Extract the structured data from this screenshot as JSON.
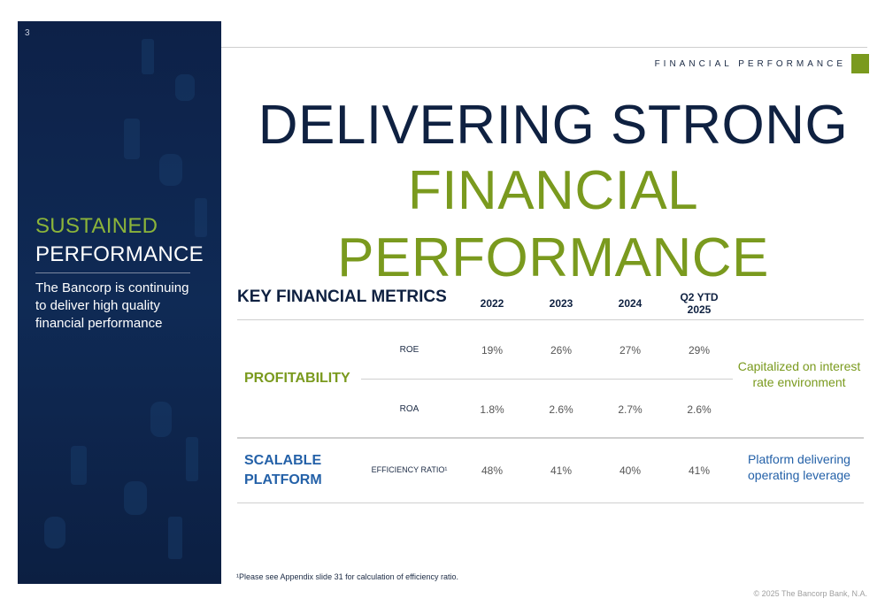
{
  "slide_number": "3",
  "sidebar": {
    "title_line1": "SUSTAINED",
    "title_line2": "PERFORMANCE",
    "text": "The Bancorp is continuing to deliver high quality financial performance"
  },
  "section_label": "FINANCIAL PERFORMANCE",
  "headline": {
    "line1": "DELIVERING STRONG",
    "line2": "FINANCIAL PERFORMANCE"
  },
  "table": {
    "title": "KEY FINANCIAL METRICS",
    "columns": [
      "2022",
      "2023",
      "2024",
      "Q2 YTD\n2025"
    ],
    "groups": [
      {
        "category": "PROFITABILITY",
        "note": "Capitalized on interest rate environment",
        "rows": [
          {
            "metric": "ROE",
            "values": [
              "19%",
              "26%",
              "27%",
              "29%"
            ]
          },
          {
            "metric": "ROA",
            "values": [
              "1.8%",
              "2.6%",
              "2.7%",
              "2.6%"
            ]
          }
        ]
      },
      {
        "category": "SCALABLE PLATFORM",
        "note": "Platform delivering operating leverage",
        "rows": [
          {
            "metric": "EFFICIENCY RATIO¹",
            "values": [
              "48%",
              "41%",
              "40%",
              "41%"
            ]
          }
        ]
      }
    ]
  },
  "footnote": "¹Please see Appendix slide 31 for calculation of efficiency ratio.",
  "copyright": "© 2025 The Bancorp Bank, N.A."
}
